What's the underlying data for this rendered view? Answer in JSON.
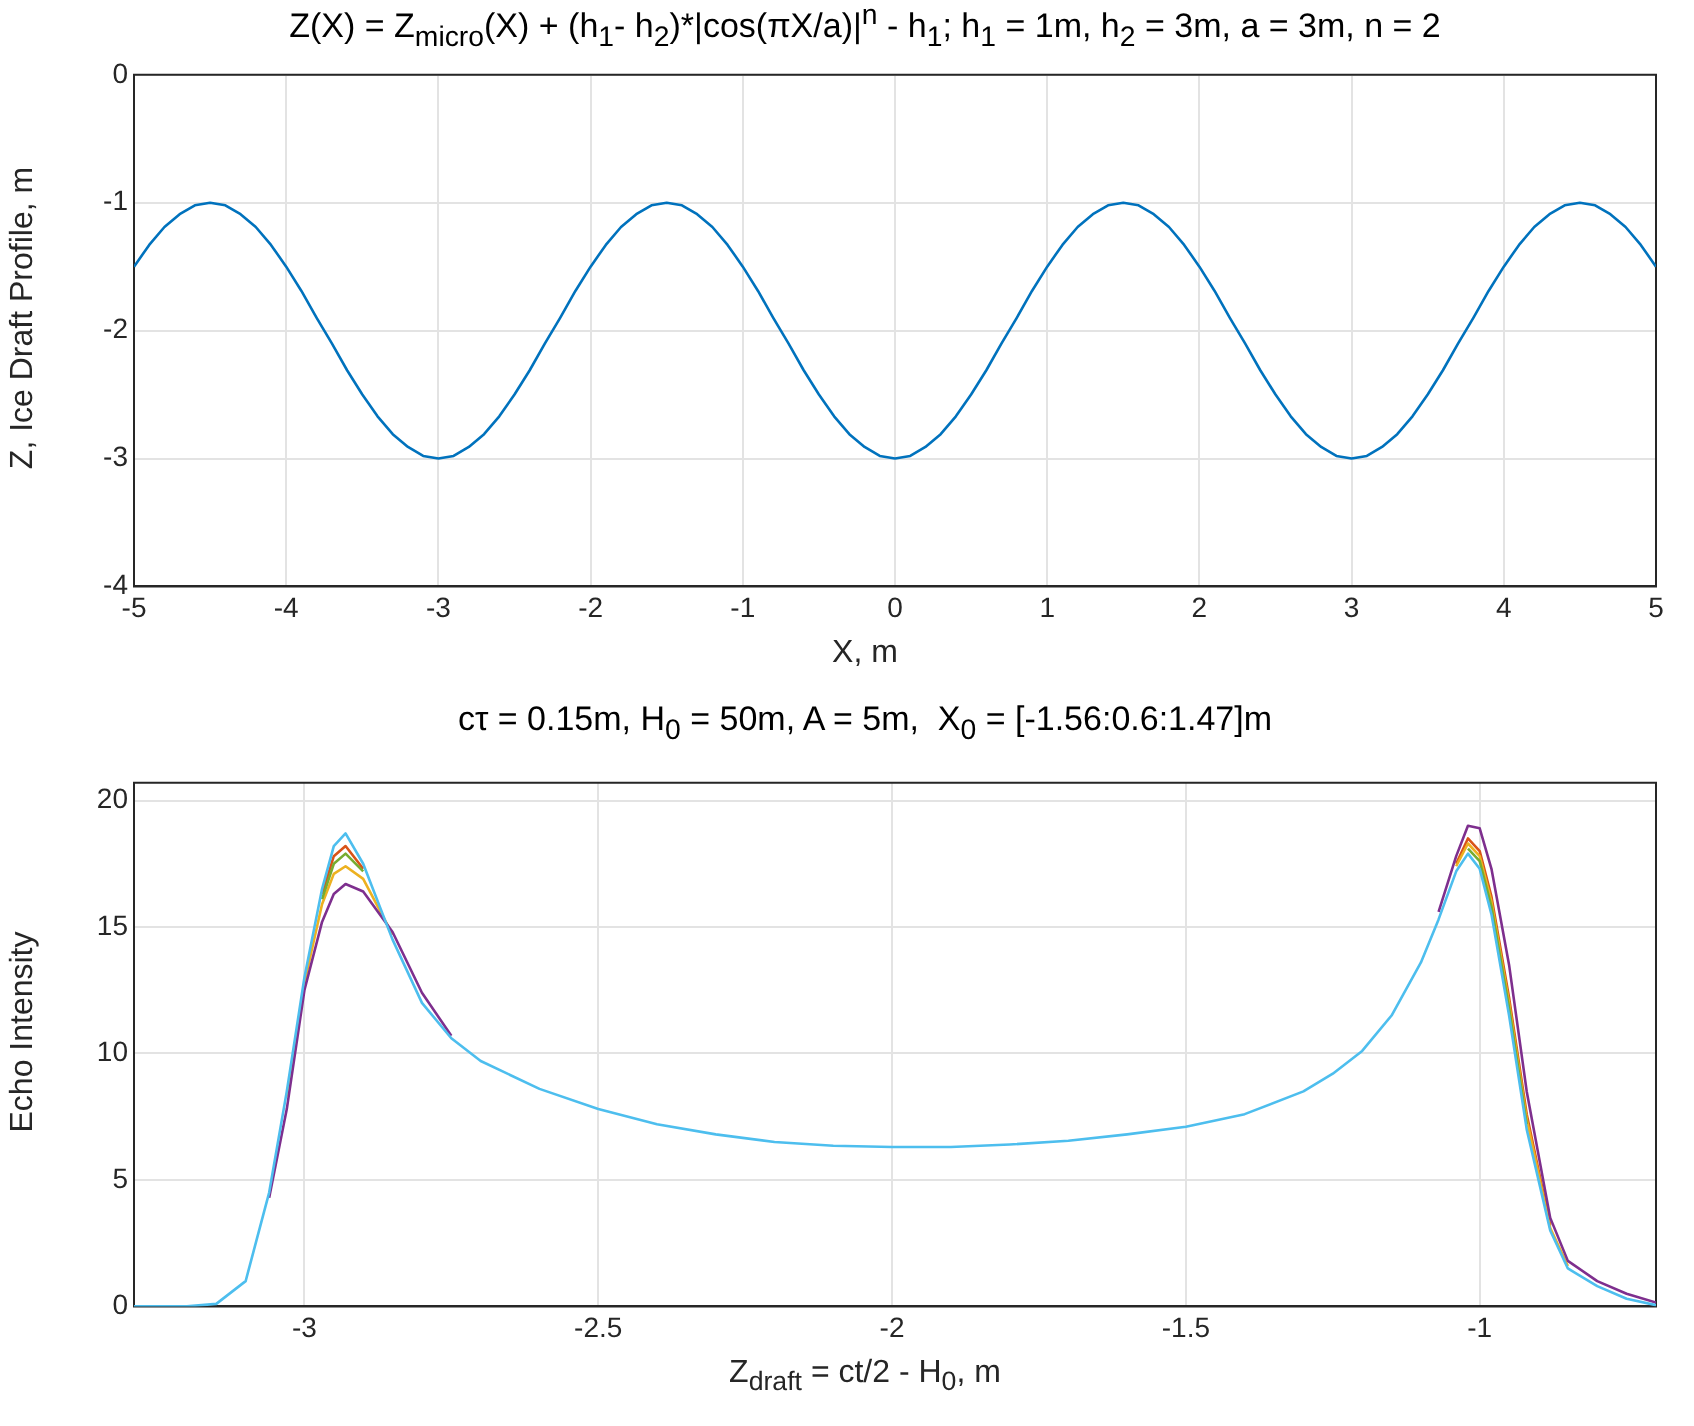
{
  "chart_data": [
    {
      "type": "line",
      "title": "Z(X) = Z$_{micro}$(X) + (h$_{1}$- h$_{2}$)*|cos(πX/a)|$^{n}$ - h$_{1}$; h$_{1}$ = 1m, h$_{2}$ = 3m, a = 3m, n = 2",
      "xlabel": "X, m",
      "ylabel": "Z, Ice Draft Profile, m",
      "x": [
        -5,
        -4.9,
        -4.8,
        -4.7,
        -4.6,
        -4.5,
        -4.4,
        -4.3,
        -4.2,
        -4.1,
        -4,
        -3.9,
        -3.8,
        -3.7,
        -3.6,
        -3.5,
        -3.4,
        -3.3,
        -3.2,
        -3.1,
        -3,
        -2.9,
        -2.8,
        -2.7,
        -2.6,
        -2.5,
        -2.4,
        -2.3,
        -2.2,
        -2.1,
        -2,
        -1.9,
        -1.8,
        -1.7,
        -1.6,
        -1.5,
        -1.4,
        -1.3,
        -1.2,
        -1.1,
        -1,
        -0.9,
        -0.8,
        -0.7,
        -0.6,
        -0.5,
        -0.4,
        -0.3,
        -0.2,
        -0.1,
        0,
        0.1,
        0.2,
        0.3,
        0.4,
        0.5,
        0.6,
        0.7,
        0.8,
        0.9,
        1,
        1.1,
        1.2,
        1.3,
        1.4,
        1.5,
        1.6,
        1.7,
        1.8,
        1.9,
        2,
        2.1,
        2.2,
        2.3,
        2.4,
        2.5,
        2.6,
        2.7,
        2.8,
        2.9,
        3,
        3.1,
        3.2,
        3.3,
        3.4,
        3.5,
        3.6,
        3.7,
        3.8,
        3.9,
        4,
        4.1,
        4.2,
        4.3,
        4.4,
        4.5,
        4.6,
        4.7,
        4.8,
        4.9,
        5
      ],
      "series": [
        {
          "color": "#0072bd",
          "values": [
            -1.5,
            -1.33,
            -1.19,
            -1.09,
            -1.02,
            -1,
            -1.02,
            -1.09,
            -1.19,
            -1.33,
            -1.5,
            -1.69,
            -1.9,
            -2.1,
            -2.31,
            -2.5,
            -2.67,
            -2.81,
            -2.91,
            -2.98,
            -3,
            -2.98,
            -2.91,
            -2.81,
            -2.67,
            -2.5,
            -2.31,
            -2.1,
            -1.9,
            -1.69,
            -1.5,
            -1.33,
            -1.19,
            -1.09,
            -1.02,
            -1,
            -1.02,
            -1.09,
            -1.19,
            -1.33,
            -1.5,
            -1.69,
            -1.9,
            -2.1,
            -2.31,
            -2.5,
            -2.67,
            -2.81,
            -2.91,
            -2.98,
            -3,
            -2.98,
            -2.91,
            -2.81,
            -2.67,
            -2.5,
            -2.31,
            -2.1,
            -1.9,
            -1.69,
            -1.5,
            -1.33,
            -1.19,
            -1.09,
            -1.02,
            -1,
            -1.02,
            -1.09,
            -1.19,
            -1.33,
            -1.5,
            -1.69,
            -1.9,
            -2.1,
            -2.31,
            -2.5,
            -2.67,
            -2.81,
            -2.91,
            -2.98,
            -3,
            -2.98,
            -2.91,
            -2.81,
            -2.67,
            -2.5,
            -2.31,
            -2.1,
            -1.9,
            -1.69,
            -1.5,
            -1.33,
            -1.19,
            -1.09,
            -1.02,
            -1,
            -1.02,
            -1.09,
            -1.19,
            -1.33,
            -1.5
          ]
        }
      ],
      "xlim": [
        -5,
        5
      ],
      "ylim": [
        -4,
        0
      ],
      "xticks": [
        -5,
        -4,
        -3,
        -2,
        -1,
        0,
        1,
        2,
        3,
        4,
        5
      ],
      "yticks": [
        -4,
        -3,
        -2,
        -1,
        0
      ],
      "grid": true,
      "legend": false,
      "marker": "none"
    },
    {
      "type": "line",
      "title": "cτ = 0.15m, H$_{0}$ = 50m, A = 5m,  X$_{0}$ = [-1.56:0.6:1.47]m",
      "xlabel": "Z$_{draft}$ = ct/2 - H$_{0}$, m",
      "ylabel": "Echo Intensity",
      "x": [
        -3.29,
        -3.2,
        -3.15,
        -3.1,
        -3.06,
        -3.03,
        -3,
        -2.97,
        -2.95,
        -2.93,
        -2.9,
        -2.85,
        -2.8,
        -2.75,
        -2.7,
        -2.6,
        -2.5,
        -2.4,
        -2.3,
        -2.2,
        -2.1,
        -2,
        -1.9,
        -1.8,
        -1.7,
        -1.6,
        -1.5,
        -1.4,
        -1.3,
        -1.25,
        -1.2,
        -1.15,
        -1.1,
        -1.07,
        -1.04,
        -1.02,
        -1,
        -0.98,
        -0.95,
        -0.92,
        -0.88,
        -0.85,
        -0.8,
        -0.75,
        -0.7
      ],
      "series": [
        {
          "color": "#d95319",
          "values": [
            null,
            null,
            null,
            null,
            null,
            null,
            null,
            16.3,
            17.8,
            18.2,
            17.3,
            null,
            null,
            null,
            null,
            null,
            null,
            null,
            null,
            null,
            null,
            null,
            null,
            null,
            null,
            null,
            null,
            null,
            null,
            null,
            null,
            null,
            null,
            null,
            17.5,
            18.5,
            18,
            16.2,
            12.2,
            7.6,
            3.2,
            null,
            null,
            null,
            null
          ]
        },
        {
          "color": "#edb120",
          "values": [
            null,
            null,
            null,
            null,
            null,
            8.3,
            12.8,
            15.9,
            17.1,
            17.4,
            16.9,
            14.7,
            null,
            null,
            null,
            null,
            null,
            null,
            null,
            null,
            null,
            null,
            null,
            null,
            null,
            null,
            null,
            null,
            null,
            null,
            null,
            null,
            null,
            null,
            17.4,
            18.3,
            17.8,
            16,
            12,
            7.4,
            3.1,
            1.6,
            null,
            null,
            null
          ]
        },
        {
          "color": "#7e2f8e",
          "values": [
            null,
            null,
            null,
            null,
            4.3,
            7.8,
            12.5,
            15.2,
            16.3,
            16.7,
            16.4,
            14.8,
            12.4,
            10.7,
            null,
            null,
            null,
            null,
            null,
            null,
            null,
            null,
            null,
            null,
            null,
            null,
            null,
            null,
            null,
            null,
            null,
            null,
            null,
            15.6,
            17.8,
            19,
            18.9,
            17.3,
            13.5,
            8.5,
            3.5,
            1.8,
            1,
            0.5,
            0.15
          ]
        },
        {
          "color": "#77ac30",
          "values": [
            null,
            null,
            null,
            null,
            null,
            null,
            null,
            16.1,
            17.5,
            17.9,
            17.2,
            null,
            null,
            null,
            null,
            null,
            null,
            null,
            null,
            null,
            null,
            null,
            null,
            null,
            null,
            null,
            null,
            null,
            null,
            null,
            null,
            null,
            null,
            null,
            null,
            18.1,
            17.6,
            15.8,
            11.8,
            7.2,
            null,
            null,
            null,
            null,
            null
          ]
        },
        {
          "color": "#4dbeee",
          "values": [
            0,
            0,
            0.1,
            1,
            4.5,
            8.5,
            13,
            16.5,
            18.2,
            18.7,
            17.5,
            14.5,
            12,
            10.6,
            9.7,
            8.6,
            7.8,
            7.2,
            6.8,
            6.5,
            6.35,
            6.3,
            6.3,
            6.4,
            6.55,
            6.8,
            7.1,
            7.6,
            8.5,
            9.2,
            10.1,
            11.5,
            13.6,
            15.3,
            17.2,
            17.9,
            17.3,
            15.5,
            11.5,
            7,
            3,
            1.5,
            0.8,
            0.3,
            0.05
          ]
        }
      ],
      "xlim": [
        -3.29,
        -0.7
      ],
      "ylim": [
        0,
        20.7
      ],
      "xticks": [
        -3,
        -2.5,
        -2,
        -1.5,
        -1
      ],
      "yticks": [
        0,
        5,
        10,
        15,
        20
      ],
      "grid": true,
      "legend": false,
      "marker": "none"
    }
  ]
}
